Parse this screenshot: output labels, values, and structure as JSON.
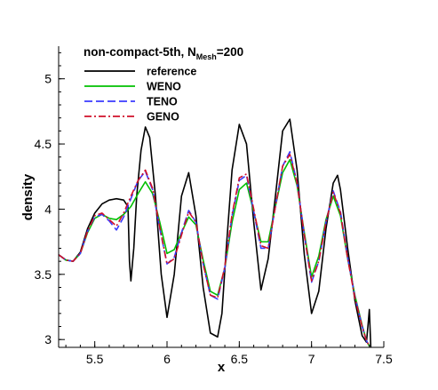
{
  "chart_data": {
    "type": "line",
    "title": {
      "prefix": "non-compact-5th, N",
      "subscript": "Mesh",
      "suffix": "=200"
    },
    "xlabel": "x",
    "ylabel": "density",
    "xlim": [
      5.25,
      7.5
    ],
    "ylim": [
      2.94,
      5.25
    ],
    "xticks": [
      5.5,
      6,
      6.5,
      7,
      7.5
    ],
    "xtick_labels": [
      "5.5",
      "6",
      "6.5",
      "7",
      "7.5"
    ],
    "yticks": [
      3,
      3.5,
      4,
      4.5,
      5
    ],
    "ytick_labels": [
      "3",
      "3.5",
      "4",
      "4.5",
      "5"
    ],
    "grid": false,
    "legend_position": "top-left",
    "series": [
      {
        "name": "reference",
        "color": "#000000",
        "style": "solid",
        "x": [
          5.25,
          5.3,
          5.35,
          5.4,
          5.45,
          5.5,
          5.55,
          5.6,
          5.65,
          5.7,
          5.73,
          5.74,
          5.75,
          5.77,
          5.79,
          5.82,
          5.85,
          5.88,
          5.92,
          5.96,
          6.0,
          6.05,
          6.1,
          6.15,
          6.2,
          6.25,
          6.3,
          6.35,
          6.38,
          6.41,
          6.45,
          6.5,
          6.55,
          6.6,
          6.65,
          6.7,
          6.75,
          6.8,
          6.85,
          6.9,
          6.95,
          7.0,
          7.05,
          7.1,
          7.15,
          7.18,
          7.2,
          7.25,
          7.3,
          7.35,
          7.38,
          7.39,
          7.4,
          7.41
        ],
        "y": [
          3.65,
          3.61,
          3.6,
          3.67,
          3.85,
          3.97,
          4.04,
          4.07,
          4.08,
          4.07,
          4.02,
          3.6,
          3.45,
          3.7,
          4.1,
          4.45,
          4.63,
          4.55,
          4.1,
          3.5,
          3.17,
          3.5,
          4.1,
          4.28,
          3.95,
          3.4,
          3.05,
          3.02,
          3.2,
          3.7,
          4.3,
          4.65,
          4.5,
          3.9,
          3.38,
          3.62,
          4.1,
          4.6,
          4.69,
          4.3,
          3.65,
          3.2,
          3.37,
          3.85,
          4.2,
          4.26,
          4.15,
          3.7,
          3.3,
          3.03,
          2.98,
          3.1,
          3.23,
          2.94
        ]
      },
      {
        "name": "WENO",
        "color": "#00c000",
        "style": "solid",
        "x": [
          5.25,
          5.3,
          5.35,
          5.4,
          5.45,
          5.5,
          5.55,
          5.6,
          5.65,
          5.7,
          5.75,
          5.8,
          5.85,
          5.9,
          5.95,
          6.0,
          6.05,
          6.1,
          6.15,
          6.2,
          6.25,
          6.3,
          6.35,
          6.4,
          6.45,
          6.5,
          6.55,
          6.6,
          6.65,
          6.7,
          6.75,
          6.8,
          6.85,
          6.9,
          6.95,
          7.0,
          7.05,
          7.1,
          7.15,
          7.2,
          7.25,
          7.3,
          7.35,
          7.38,
          7.4
        ],
        "y": [
          3.65,
          3.61,
          3.6,
          3.66,
          3.82,
          3.93,
          3.96,
          3.93,
          3.92,
          3.96,
          4.02,
          4.12,
          4.21,
          4.12,
          3.9,
          3.66,
          3.69,
          3.82,
          3.94,
          3.88,
          3.61,
          3.37,
          3.34,
          3.55,
          3.9,
          4.15,
          4.2,
          3.98,
          3.75,
          3.75,
          4.02,
          4.28,
          4.38,
          4.18,
          3.82,
          3.48,
          3.64,
          3.92,
          4.1,
          3.95,
          3.62,
          3.34,
          3.11,
          2.99,
          2.95
        ]
      },
      {
        "name": "TENO",
        "color": "#3a3aff",
        "style": "dashed",
        "x": [
          5.25,
          5.3,
          5.35,
          5.4,
          5.45,
          5.5,
          5.55,
          5.6,
          5.65,
          5.7,
          5.75,
          5.8,
          5.85,
          5.9,
          5.95,
          6.0,
          6.05,
          6.1,
          6.15,
          6.2,
          6.25,
          6.3,
          6.35,
          6.4,
          6.45,
          6.5,
          6.55,
          6.6,
          6.65,
          6.7,
          6.75,
          6.8,
          6.85,
          6.9,
          6.95,
          7.0,
          7.05,
          7.1,
          7.15,
          7.2,
          7.25,
          7.3,
          7.35,
          7.38,
          7.4
        ],
        "y": [
          3.65,
          3.61,
          3.6,
          3.66,
          3.83,
          3.94,
          3.96,
          3.91,
          3.84,
          3.94,
          4.08,
          4.22,
          4.29,
          4.15,
          3.85,
          3.58,
          3.63,
          3.82,
          3.99,
          3.9,
          3.58,
          3.34,
          3.31,
          3.55,
          3.95,
          4.22,
          4.26,
          3.98,
          3.7,
          3.7,
          4.02,
          4.33,
          4.44,
          4.2,
          3.8,
          3.44,
          3.6,
          3.9,
          4.14,
          3.98,
          3.63,
          3.33,
          3.1,
          2.99,
          2.95
        ]
      },
      {
        "name": "GENO",
        "color": "#d0102a",
        "style": "dashdot",
        "x": [
          5.25,
          5.3,
          5.35,
          5.4,
          5.45,
          5.5,
          5.55,
          5.6,
          5.65,
          5.7,
          5.75,
          5.8,
          5.85,
          5.9,
          5.95,
          6.0,
          6.05,
          6.1,
          6.15,
          6.2,
          6.25,
          6.3,
          6.35,
          6.4,
          6.45,
          6.5,
          6.55,
          6.6,
          6.65,
          6.7,
          6.75,
          6.8,
          6.85,
          6.9,
          6.95,
          7.0,
          7.05,
          7.1,
          7.15,
          7.2,
          7.25,
          7.3,
          7.35,
          7.38,
          7.4
        ],
        "y": [
          3.65,
          3.61,
          3.6,
          3.66,
          3.83,
          3.95,
          3.97,
          3.92,
          3.87,
          3.97,
          4.1,
          4.22,
          4.3,
          4.16,
          3.86,
          3.58,
          3.62,
          3.8,
          3.98,
          3.9,
          3.58,
          3.34,
          3.32,
          3.56,
          3.96,
          4.24,
          4.27,
          4.0,
          3.72,
          3.7,
          4.02,
          4.33,
          4.42,
          4.2,
          3.8,
          3.45,
          3.6,
          3.9,
          4.13,
          3.97,
          3.62,
          3.32,
          3.1,
          2.99,
          2.95
        ]
      }
    ]
  }
}
